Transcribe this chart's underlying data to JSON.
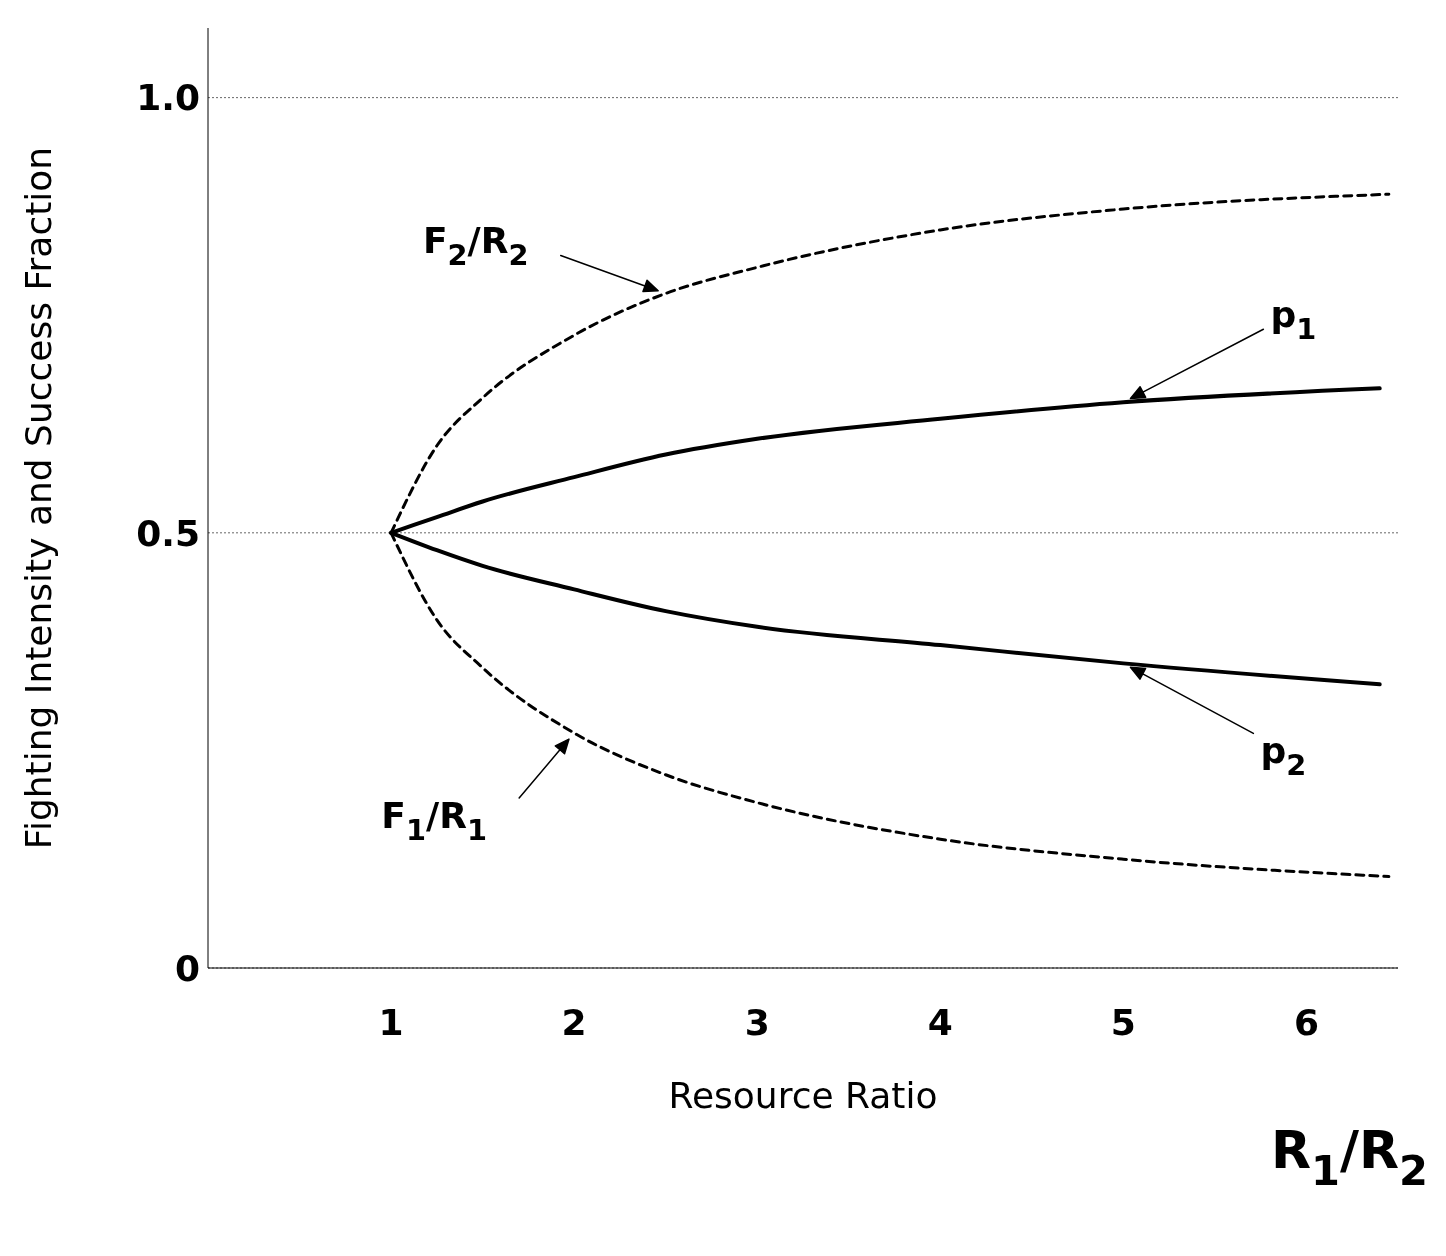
{
  "chart_data": {
    "type": "line",
    "xlabel": "Resource Ratio",
    "ylabel": "Fighting Intensity and Success Fraction",
    "annotations": [
      "R$_{1}$/R$_{2}$"
    ],
    "xlim": [
      0,
      6.5
    ],
    "xticks": [
      1,
      2,
      3,
      4,
      5,
      6
    ],
    "ylim": [
      0,
      1.08
    ],
    "yticks": [
      0,
      0.5,
      {
        "value": 1,
        "label": "1.0"
      }
    ],
    "grid": "y",
    "marker": "none",
    "series": [
      {
        "name": "F$_{2}$/R$_{2}$",
        "color": "#000000",
        "line_style": "dashed",
        "x": [
          1,
          1.25,
          1.5,
          2,
          2.5,
          3,
          4,
          5,
          6.45
        ],
        "values": [
          0.5,
          0.6,
          0.655,
          0.727,
          0.775,
          0.805,
          0.848,
          0.872,
          0.889
        ]
      },
      {
        "name": "p$_{1}$",
        "color": "#000000",
        "line_style": "solid",
        "x": [
          1,
          1.25,
          1.5,
          2,
          2.5,
          3,
          4,
          5,
          6.4
        ],
        "values": [
          0.5,
          0.518,
          0.536,
          0.564,
          0.59,
          0.608,
          0.631,
          0.65,
          0.666
        ]
      },
      {
        "name": "p$_{2}$",
        "color": "#000000",
        "line_style": "solid",
        "x": [
          1,
          1.25,
          1.5,
          2,
          2.5,
          3,
          4,
          5,
          6.4
        ],
        "values": [
          0.5,
          0.48,
          0.462,
          0.435,
          0.41,
          0.392,
          0.371,
          0.35,
          0.326
        ]
      },
      {
        "name": "F$_{1}$/R$_{1}$",
        "color": "#000000",
        "line_style": "dashed",
        "x": [
          1,
          1.25,
          1.5,
          2,
          2.5,
          3,
          4,
          5,
          6.45
        ],
        "values": [
          0.5,
          0.4,
          0.345,
          0.27,
          0.222,
          0.19,
          0.148,
          0.125,
          0.105
        ]
      }
    ]
  }
}
